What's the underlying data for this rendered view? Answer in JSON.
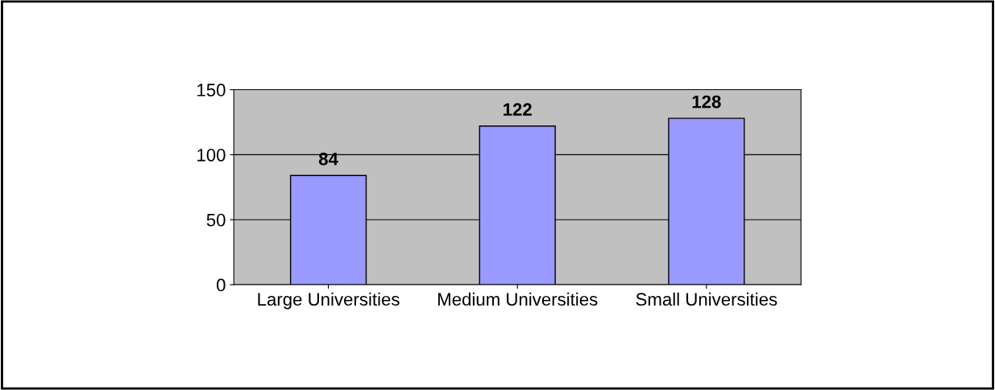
{
  "chart_data": {
    "type": "bar",
    "categories": [
      "Large Universities",
      "Medium Universities",
      "Small Universities"
    ],
    "values": [
      84,
      122,
      128
    ],
    "color": "#9999ff",
    "ylim": [
      0,
      150
    ],
    "yticks": [
      0,
      50,
      100,
      150
    ],
    "grid": "y",
    "data_labels": true
  }
}
